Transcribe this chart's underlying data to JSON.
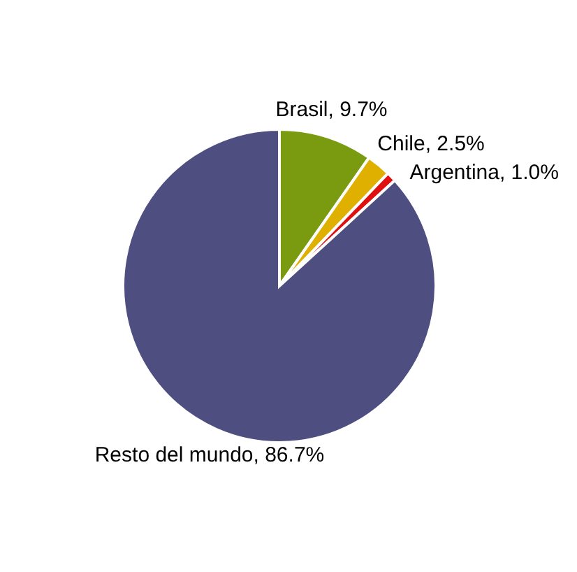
{
  "chart_data": {
    "type": "pie",
    "categories": [
      "Brasil",
      "Chile",
      "Argentina",
      "Resto del mundo"
    ],
    "values": [
      9.7,
      2.5,
      1.0,
      86.7
    ],
    "value_labels": [
      "9.7%",
      "2.5%",
      "1.0%",
      "86.7%"
    ],
    "colors": [
      "#7a9a10",
      "#e0b000",
      "#e01010",
      "#4e4e80"
    ]
  }
}
